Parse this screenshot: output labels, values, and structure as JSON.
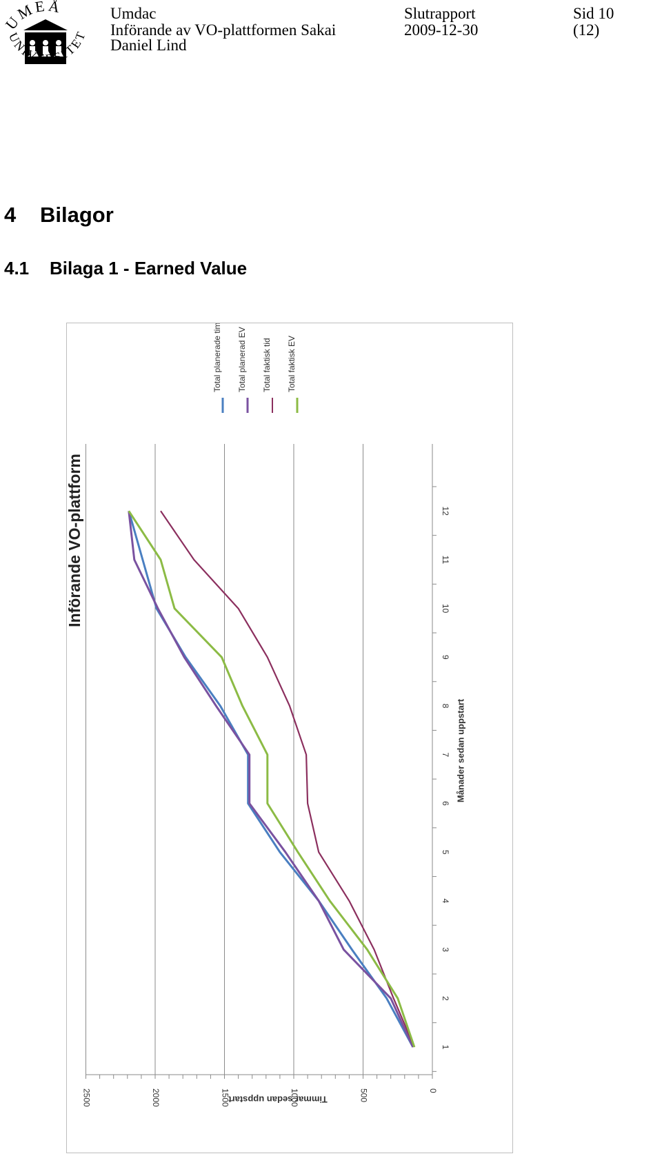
{
  "header": {
    "org": "Umdac",
    "project": "Införande av VO-plattformen Sakai",
    "author": "Daniel Lind",
    "doc_type": "Slutrapport",
    "date": "2009-12-30",
    "page": "Sid 10",
    "total_pages": "(12)"
  },
  "logo": {
    "text": "UMEÅ UNIVERSITET"
  },
  "section": {
    "number": "4",
    "title": "Bilagor"
  },
  "subsection": {
    "number": "4.1",
    "title": "Bilaga 1 - Earned Value"
  },
  "chart_data": {
    "type": "line",
    "orientation": "rotated 90° clockwise",
    "title": "Införande VO-plattform",
    "xlabel": "Månader sedan uppstart",
    "ylabel": "Timmar sedan uppstart",
    "x": [
      1,
      2,
      3,
      4,
      5,
      6,
      7,
      8,
      9,
      10,
      11,
      12
    ],
    "ylim": [
      0,
      2500
    ],
    "yticks": [
      0,
      500,
      1000,
      1500,
      2000,
      2500
    ],
    "grid": true,
    "legend_position": "right",
    "series": [
      {
        "name": "Total planerade timmar",
        "color": "#4a7fc1",
        "values": [
          140,
          330,
          580,
          820,
          1100,
          1330,
          1330,
          1530,
          1780,
          1990,
          2090,
          2190
        ]
      },
      {
        "name": "Total planerad EV",
        "color": "#7a52a0",
        "values": [
          140,
          300,
          640,
          820,
          1060,
          1320,
          1320,
          1560,
          1790,
          1980,
          2150,
          2190
        ]
      },
      {
        "name": "Total faktisk tid",
        "color": "#8b2f5e",
        "values": [
          130,
          280,
          420,
          600,
          820,
          900,
          910,
          1030,
          1190,
          1400,
          1720,
          1960
        ]
      },
      {
        "name": "Total faktisk EV",
        "color": "#8cbb45",
        "values": [
          130,
          250,
          470,
          740,
          970,
          1190,
          1190,
          1370,
          1520,
          1860,
          1960,
          2190
        ]
      }
    ]
  }
}
